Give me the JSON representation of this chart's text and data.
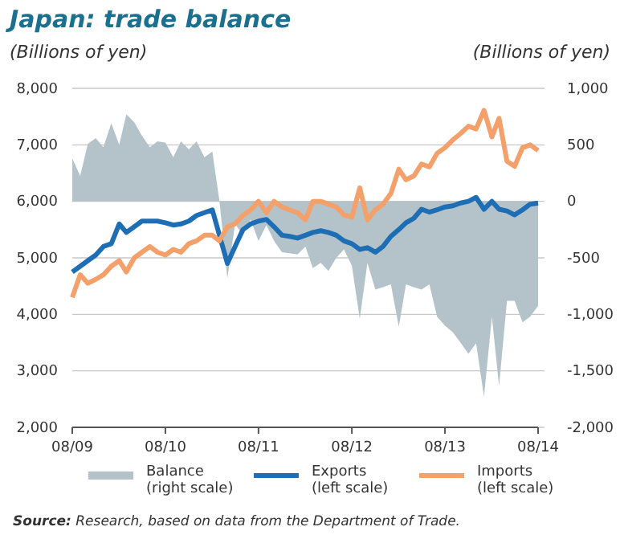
{
  "chart_data": {
    "type": "line",
    "title": "Japan: trade balance",
    "ylabel": "(Billions of yen)",
    "y2label": "(Billions of yen)",
    "x": [
      "2009-08",
      "2009-09",
      "2009-10",
      "2009-11",
      "2009-12",
      "2010-01",
      "2010-02",
      "2010-03",
      "2010-04",
      "2010-05",
      "2010-06",
      "2010-07",
      "2010-08",
      "2010-09",
      "2010-10",
      "2010-11",
      "2010-12",
      "2011-01",
      "2011-02",
      "2011-03",
      "2011-04",
      "2011-05",
      "2011-06",
      "2011-07",
      "2011-08",
      "2011-09",
      "2011-10",
      "2011-11",
      "2011-12",
      "2012-01",
      "2012-02",
      "2012-03",
      "2012-04",
      "2012-05",
      "2012-06",
      "2012-07",
      "2012-08",
      "2012-09",
      "2012-10",
      "2012-11",
      "2012-12",
      "2013-01",
      "2013-02",
      "2013-03",
      "2013-04",
      "2013-05",
      "2013-06",
      "2013-07",
      "2013-08",
      "2013-09",
      "2013-10",
      "2013-11",
      "2013-12",
      "2014-01",
      "2014-02",
      "2014-03",
      "2014-04",
      "2014-05",
      "2014-06",
      "2014-07",
      "2014-08"
    ],
    "series": [
      {
        "name": "Balance\n(right scale)",
        "type": "area",
        "axis": "y2",
        "color": "#b4c3c9",
        "values": [
          380,
          225,
          510,
          560,
          480,
          690,
          500,
          770,
          700,
          580,
          480,
          530,
          520,
          390,
          530,
          460,
          530,
          390,
          440,
          0,
          -680,
          -200,
          -300,
          -160,
          -350,
          -210,
          -350,
          -450,
          -460,
          -470,
          -400,
          -590,
          -545,
          -615,
          -500,
          -425,
          -570,
          -1040,
          -545,
          -780,
          -760,
          -735,
          -1110,
          -735,
          -760,
          -780,
          -735,
          -1020,
          -1100,
          -1160,
          -1250,
          -1350,
          -1255,
          -1730,
          -1020,
          -1635,
          -880,
          -880,
          -1070,
          -1020,
          -925
        ]
      },
      {
        "name": "Exports\n(left scale)",
        "color": "#1e6eb5",
        "values": [
          4750,
          4850,
          4950,
          5050,
          5200,
          5250,
          5600,
          5450,
          5550,
          5650,
          5650,
          5650,
          5620,
          5580,
          5600,
          5650,
          5750,
          5800,
          5850,
          5400,
          4900,
          5200,
          5500,
          5600,
          5650,
          5680,
          5550,
          5400,
          5380,
          5350,
          5400,
          5450,
          5480,
          5450,
          5400,
          5300,
          5250,
          5150,
          5180,
          5100,
          5200,
          5380,
          5500,
          5620,
          5700,
          5860,
          5810,
          5850,
          5900,
          5920,
          5970,
          6000,
          6070,
          5860,
          6000,
          5860,
          5830,
          5760,
          5850,
          5950,
          5970
        ]
      },
      {
        "name": "Imports\n(left scale)",
        "color": "#f4a06a",
        "values": [
          4300,
          4700,
          4550,
          4620,
          4700,
          4850,
          4950,
          4750,
          5000,
          5100,
          5200,
          5100,
          5050,
          5150,
          5100,
          5250,
          5300,
          5400,
          5400,
          5300,
          5550,
          5600,
          5750,
          5850,
          6000,
          5800,
          6000,
          5900,
          5850,
          5800,
          5670,
          6000,
          6000,
          5950,
          5900,
          5760,
          5720,
          6240,
          5670,
          5850,
          5950,
          6140,
          6570,
          6380,
          6450,
          6660,
          6610,
          6850,
          6950,
          7090,
          7200,
          7330,
          7280,
          7610,
          7140,
          7470,
          6710,
          6620,
          6950,
          7000,
          6900
        ]
      }
    ],
    "xlim": [
      "2009-08",
      "2014-08"
    ],
    "xticks": [
      {
        "value": "2009-08",
        "label": "08/09"
      },
      {
        "value": "2010-08",
        "label": "08/10"
      },
      {
        "value": "2011-08",
        "label": "08/11"
      },
      {
        "value": "2012-08",
        "label": "08/12"
      },
      {
        "value": "2013-08",
        "label": "08/13"
      },
      {
        "value": "2014-08",
        "label": "08/14"
      }
    ],
    "ylim": [
      2000,
      8000
    ],
    "yticks": [
      {
        "value": 2000,
        "label": "2,000"
      },
      {
        "value": 3000,
        "label": "3,000"
      },
      {
        "value": 4000,
        "label": "4,000"
      },
      {
        "value": 5000,
        "label": "5,000"
      },
      {
        "value": 6000,
        "label": "6,000"
      },
      {
        "value": 7000,
        "label": "7,000"
      },
      {
        "value": 8000,
        "label": "8,000"
      }
    ],
    "y2lim": [
      -2000,
      1000
    ],
    "y2ticks": [
      {
        "value": -2000,
        "label": "-2,000"
      },
      {
        "value": -1500,
        "label": "-1,500"
      },
      {
        "value": -1000,
        "label": "-1,000"
      },
      {
        "value": -500,
        "label": "-500"
      },
      0,
      500,
      {
        "value": 1000,
        "label": "1,000"
      }
    ],
    "grid": "y",
    "legend": "bottom",
    "annotations": [
      "Source: Research, based on data from the Department of Trade."
    ]
  }
}
